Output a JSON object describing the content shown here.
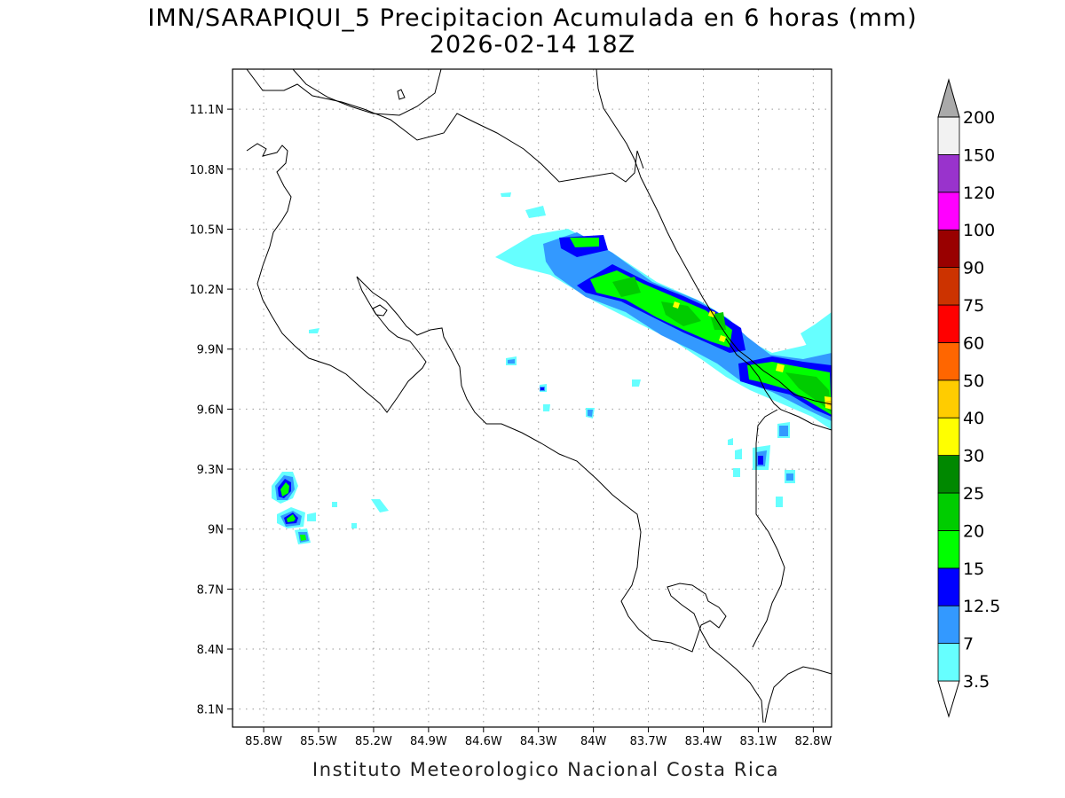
{
  "header": {
    "title": "IMN/SARAPIQUI_5 Precipitacion Acumulada en 6 horas (mm)",
    "datetime": "2026-02-14 18Z"
  },
  "footer": {
    "credit": "Instituto Meteorologico Nacional Costa Rica"
  },
  "map": {
    "lon_range": [
      -85.97,
      -82.7
    ],
    "lat_range": [
      8.01,
      11.3
    ],
    "lon_ticks": [
      {
        "value": -85.8,
        "label": "85.8W"
      },
      {
        "value": -85.5,
        "label": "85.5W"
      },
      {
        "value": -85.2,
        "label": "85.2W"
      },
      {
        "value": -84.9,
        "label": "84.9W"
      },
      {
        "value": -84.6,
        "label": "84.6W"
      },
      {
        "value": -84.3,
        "label": "84.3W"
      },
      {
        "value": -84.0,
        "label": "84W"
      },
      {
        "value": -83.7,
        "label": "83.7W"
      },
      {
        "value": -83.4,
        "label": "83.4W"
      },
      {
        "value": -83.1,
        "label": "83.1W"
      },
      {
        "value": -82.8,
        "label": "82.8W"
      }
    ],
    "lat_ticks": [
      {
        "value": 11.1,
        "label": "11.1N"
      },
      {
        "value": 10.8,
        "label": "10.8N"
      },
      {
        "value": 10.5,
        "label": "10.5N"
      },
      {
        "value": 10.2,
        "label": "10.2N"
      },
      {
        "value": 9.9,
        "label": "9.9N"
      },
      {
        "value": 9.6,
        "label": "9.6N"
      },
      {
        "value": 9.3,
        "label": "9.3N"
      },
      {
        "value": 9.0,
        "label": "9N"
      },
      {
        "value": 8.7,
        "label": "8.7N"
      },
      {
        "value": 8.4,
        "label": "8.4N"
      },
      {
        "value": 8.1,
        "label": "8.1N"
      }
    ],
    "grid": "dotted"
  },
  "colorbar": {
    "unit": "mm",
    "levels": [
      {
        "label": "3.5",
        "color": "#66ffff"
      },
      {
        "label": "7",
        "color": "#3399ff"
      },
      {
        "label": "12.5",
        "color": "#0000ff"
      },
      {
        "label": "15",
        "color": "#00ff00"
      },
      {
        "label": "20",
        "color": "#00cc00"
      },
      {
        "label": "25",
        "color": "#008800"
      },
      {
        "label": "30",
        "color": "#ffff00"
      },
      {
        "label": "40",
        "color": "#ffcc00"
      },
      {
        "label": "50",
        "color": "#ff6600"
      },
      {
        "label": "60",
        "color": "#ff0000"
      },
      {
        "label": "75",
        "color": "#cc3300"
      },
      {
        "label": "90",
        "color": "#990000"
      },
      {
        "label": "100",
        "color": "#ff00ff"
      },
      {
        "label": "120",
        "color": "#9933cc"
      },
      {
        "label": "150",
        "color": "#f2f2f2"
      },
      {
        "label": "200",
        "color": "#aaaaaa"
      }
    ]
  }
}
